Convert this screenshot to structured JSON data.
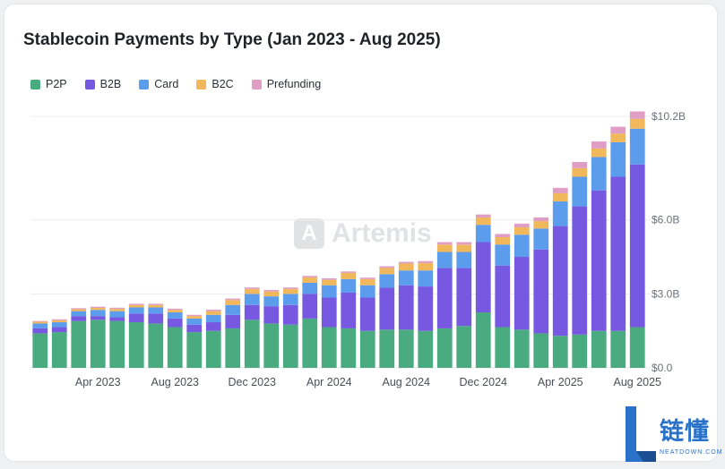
{
  "chart_data": {
    "type": "bar",
    "stacked": true,
    "title": "Stablecoin Payments by Type (Jan 2023 - Aug 2025)",
    "legend_position": "top-left",
    "grid": true,
    "y_axis_side": "right",
    "ylim": [
      0,
      10.2
    ],
    "y_unit": "billions USD",
    "y_ticks": [
      {
        "value": 0,
        "label": "$0.0"
      },
      {
        "value": 3.0,
        "label": "$3.0B"
      },
      {
        "value": 6.0,
        "label": "$6.0B"
      },
      {
        "value": 10.2,
        "label": "$10.2B"
      }
    ],
    "x_tick_labels": [
      {
        "index": 3,
        "label": "Apr 2023"
      },
      {
        "index": 7,
        "label": "Aug 2023"
      },
      {
        "index": 11,
        "label": "Dec 2023"
      },
      {
        "index": 15,
        "label": "Apr 2024"
      },
      {
        "index": 19,
        "label": "Aug 2024"
      },
      {
        "index": 23,
        "label": "Dec 2024"
      },
      {
        "index": 27,
        "label": "Apr 2025"
      },
      {
        "index": 31,
        "label": "Aug 2025"
      }
    ],
    "categories": [
      "Jan 2023",
      "Feb 2023",
      "Mar 2023",
      "Apr 2023",
      "May 2023",
      "Jun 2023",
      "Jul 2023",
      "Aug 2023",
      "Sep 2023",
      "Oct 2023",
      "Nov 2023",
      "Dec 2023",
      "Jan 2024",
      "Feb 2024",
      "Mar 2024",
      "Apr 2024",
      "May 2024",
      "Jun 2024",
      "Jul 2024",
      "Aug 2024",
      "Sep 2024",
      "Oct 2024",
      "Nov 2024",
      "Dec 2024",
      "Jan 2025",
      "Feb 2025",
      "Mar 2025",
      "Apr 2025",
      "May 2025",
      "Jun 2025",
      "Jul 2025",
      "Aug 2025"
    ],
    "series": [
      {
        "name": "P2P",
        "color": "#4aaa80",
        "values": [
          1.4,
          1.45,
          1.9,
          1.95,
          1.9,
          1.85,
          1.8,
          1.65,
          1.45,
          1.5,
          1.6,
          1.95,
          1.8,
          1.75,
          2.0,
          1.65,
          1.6,
          1.5,
          1.55,
          1.55,
          1.5,
          1.6,
          1.7,
          2.25,
          1.65,
          1.55,
          1.4,
          1.3,
          1.35,
          1.5,
          1.5,
          1.65
        ]
      },
      {
        "name": "B2B",
        "color": "#7659e0",
        "values": [
          0.2,
          0.2,
          0.2,
          0.15,
          0.15,
          0.35,
          0.4,
          0.35,
          0.3,
          0.35,
          0.55,
          0.6,
          0.7,
          0.8,
          1.0,
          1.2,
          1.45,
          1.35,
          1.7,
          1.8,
          1.8,
          2.45,
          2.35,
          2.85,
          2.5,
          2.95,
          3.4,
          4.45,
          5.2,
          5.7,
          6.25,
          6.6
        ]
      },
      {
        "name": "Card",
        "color": "#5c9cec",
        "values": [
          0.2,
          0.2,
          0.2,
          0.25,
          0.25,
          0.25,
          0.25,
          0.25,
          0.25,
          0.3,
          0.4,
          0.45,
          0.4,
          0.45,
          0.45,
          0.5,
          0.55,
          0.5,
          0.55,
          0.6,
          0.65,
          0.65,
          0.65,
          0.7,
          0.85,
          0.9,
          0.85,
          1.0,
          1.2,
          1.35,
          1.4,
          1.45
        ]
      },
      {
        "name": "B2C",
        "color": "#f0b85a",
        "values": [
          0.07,
          0.08,
          0.08,
          0.08,
          0.09,
          0.1,
          0.1,
          0.1,
          0.1,
          0.15,
          0.2,
          0.2,
          0.2,
          0.2,
          0.22,
          0.22,
          0.25,
          0.25,
          0.25,
          0.28,
          0.3,
          0.3,
          0.3,
          0.3,
          0.3,
          0.3,
          0.3,
          0.33,
          0.35,
          0.35,
          0.35,
          0.4
        ]
      },
      {
        "name": "Prefunding",
        "color": "#e09ec4",
        "values": [
          0.03,
          0.04,
          0.04,
          0.05,
          0.05,
          0.05,
          0.05,
          0.05,
          0.05,
          0.06,
          0.06,
          0.06,
          0.06,
          0.06,
          0.06,
          0.06,
          0.06,
          0.06,
          0.07,
          0.07,
          0.08,
          0.1,
          0.1,
          0.12,
          0.13,
          0.15,
          0.15,
          0.22,
          0.25,
          0.28,
          0.28,
          0.3
        ]
      }
    ]
  },
  "watermark": {
    "text": "Artemis",
    "icon": "artemis-logo-icon"
  },
  "brand": {
    "text": "链懂",
    "subtext": "NEATDOWN.COM"
  }
}
